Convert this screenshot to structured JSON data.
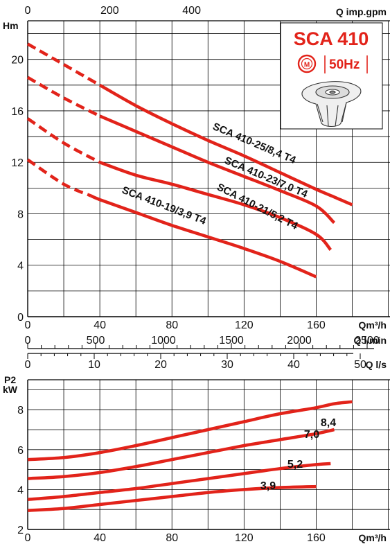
{
  "title": "SCA 410",
  "frequency": "50Hz",
  "motor_symbol": "M",
  "colors": {
    "curve": "#e2231a",
    "grid": "#000000",
    "text": "#111111"
  },
  "chart_data": [
    {
      "type": "line",
      "panel": "head",
      "y_axis_label": "Hm",
      "x_axis_label": "Qm³/h",
      "top_axis_label": "Q imp.gpm",
      "xlim": [
        0,
        180
      ],
      "ylim": [
        0,
        23
      ],
      "top_ticks": [
        "0",
        "200",
        "400"
      ],
      "x_ticks": [
        "0",
        "40",
        "80",
        "120",
        "160"
      ],
      "y_ticks": [
        "0",
        "4",
        "8",
        "12",
        "16",
        "20"
      ],
      "grid": true,
      "series": [
        {
          "name": "SCA 410-25/8,4 T4",
          "dashed_until": 40,
          "x": [
            0,
            20,
            40,
            60,
            80,
            100,
            120,
            140,
            160,
            170,
            180
          ],
          "y": [
            21.2,
            19.6,
            18.0,
            16.4,
            15.0,
            13.7,
            12.5,
            11.2,
            9.9,
            9.3,
            8.7
          ]
        },
        {
          "name": "SCA 410-23/7,0 T4",
          "dashed_until": 40,
          "x": [
            0,
            20,
            40,
            60,
            80,
            100,
            120,
            140,
            160,
            170
          ],
          "y": [
            18.6,
            17.0,
            15.6,
            14.4,
            13.2,
            12.0,
            10.9,
            9.8,
            8.6,
            7.3
          ]
        },
        {
          "name": "SCA 410-21/5,2 T4",
          "dashed_until": 40,
          "x": [
            0,
            20,
            40,
            60,
            80,
            100,
            120,
            140,
            160,
            168
          ],
          "y": [
            15.4,
            13.5,
            12.0,
            11.0,
            10.3,
            9.5,
            8.7,
            7.7,
            6.4,
            5.2
          ]
        },
        {
          "name": "SCA 410-19/3,9 T4",
          "dashed_until": 35,
          "x": [
            0,
            20,
            40,
            60,
            80,
            100,
            120,
            140,
            160
          ],
          "y": [
            12.2,
            10.3,
            9.1,
            8.1,
            7.1,
            6.2,
            5.3,
            4.3,
            3.1
          ]
        }
      ]
    },
    {
      "type": "scale",
      "panel": "flow-scales",
      "scales": [
        {
          "unit": "Q l/min",
          "ticks": [
            "0",
            "500",
            "1000",
            "1500",
            "2000",
            "2500"
          ]
        },
        {
          "unit": "Q l/s",
          "ticks": [
            "0",
            "10",
            "20",
            "30",
            "40",
            "50"
          ]
        }
      ]
    },
    {
      "type": "line",
      "panel": "power",
      "y_axis_label_line1": "P2",
      "y_axis_label_line2": "kW",
      "x_axis_label": "Qm³/h",
      "xlim": [
        0,
        180
      ],
      "ylim": [
        2,
        9.5
      ],
      "x_ticks": [
        "0",
        "40",
        "80",
        "120",
        "160"
      ],
      "y_ticks": [
        "2",
        "4",
        "6",
        "8"
      ],
      "grid": true,
      "series": [
        {
          "name": "8,4",
          "x": [
            0,
            20,
            40,
            60,
            80,
            100,
            120,
            140,
            160,
            170,
            180
          ],
          "y": [
            5.5,
            5.6,
            5.85,
            6.2,
            6.6,
            7.0,
            7.4,
            7.8,
            8.1,
            8.3,
            8.4
          ]
        },
        {
          "name": "7,0",
          "x": [
            0,
            20,
            40,
            60,
            80,
            100,
            120,
            140,
            160,
            170
          ],
          "y": [
            4.55,
            4.65,
            4.85,
            5.15,
            5.5,
            5.85,
            6.2,
            6.5,
            6.8,
            7.0
          ]
        },
        {
          "name": "5,2",
          "x": [
            0,
            20,
            40,
            60,
            80,
            100,
            120,
            140,
            160,
            168
          ],
          "y": [
            3.5,
            3.65,
            3.85,
            4.05,
            4.3,
            4.55,
            4.8,
            5.05,
            5.25,
            5.3
          ]
        },
        {
          "name": "3,9",
          "x": [
            0,
            20,
            40,
            60,
            80,
            100,
            120,
            140,
            160
          ],
          "y": [
            2.95,
            3.05,
            3.25,
            3.45,
            3.65,
            3.85,
            4.0,
            4.1,
            4.15
          ]
        }
      ]
    }
  ]
}
